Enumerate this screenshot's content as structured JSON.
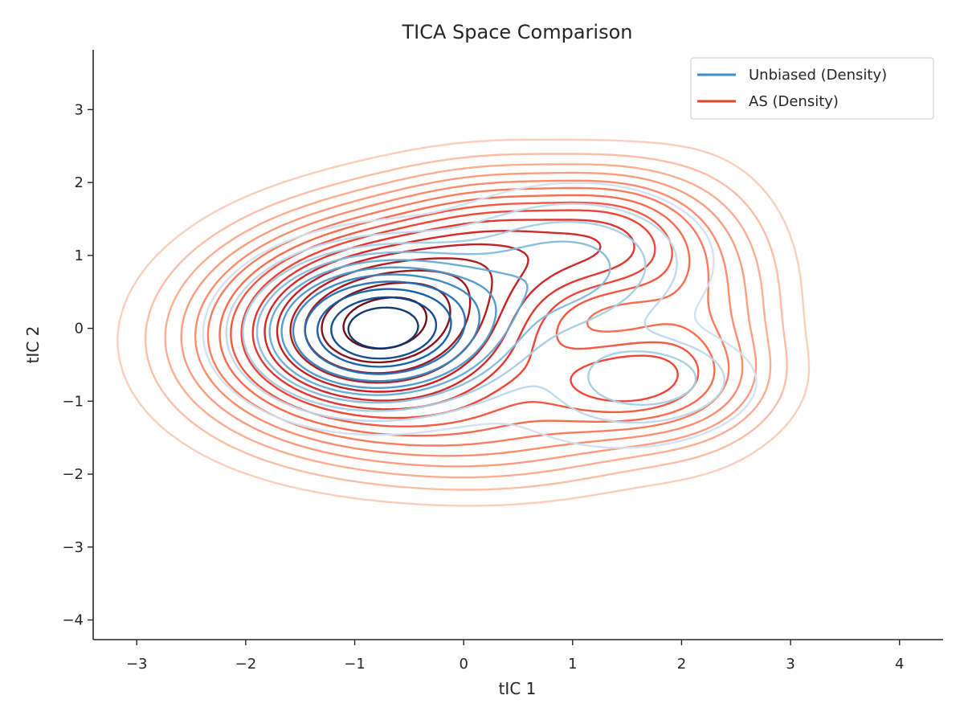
{
  "chart_data": {
    "type": "contour",
    "title": "TICA Space Comparison",
    "xlabel": "tIC 1",
    "ylabel": "tIC 2",
    "xlim": [
      -3.4,
      4.4
    ],
    "ylim": [
      -4.27,
      3.82
    ],
    "xticks": [
      -3,
      -2,
      -1,
      0,
      1,
      2,
      3,
      4
    ],
    "yticks": [
      -4,
      -3,
      -2,
      -1,
      0,
      1,
      2,
      3
    ],
    "xtick_labels": [
      "−3",
      "−2",
      "−1",
      "0",
      "1",
      "2",
      "3",
      "4"
    ],
    "ytick_labels": [
      "−4",
      "−3",
      "−2",
      "−1",
      "0",
      "1",
      "2",
      "3"
    ],
    "grid": false,
    "legend_position": "top-right",
    "series": [
      {
        "name": "Unbiased (Density)",
        "legend_color": "#3b8cc4",
        "colormap": "Blues",
        "components": [
          {
            "mx": -0.75,
            "my": 0.0,
            "sx": 0.62,
            "sy": 0.55,
            "rho": 0.05,
            "w": 1.0
          },
          {
            "mx": 0.9,
            "my": 0.8,
            "sx": 0.7,
            "sy": 0.6,
            "rho": 0.1,
            "w": 0.22
          },
          {
            "mx": 1.7,
            "my": -0.65,
            "sx": 0.5,
            "sy": 0.35,
            "rho": 0.0,
            "w": 0.14
          },
          {
            "mx": 1.4,
            "my": -1.1,
            "sx": 0.8,
            "sy": 0.5,
            "rho": 0.0,
            "w": 0.05
          }
        ],
        "levels": [
          0.03,
          0.07,
          0.12,
          0.18,
          0.25,
          0.33,
          0.42,
          0.52,
          0.63,
          0.75,
          0.88
        ]
      },
      {
        "name": "AS (Density)",
        "legend_color": "#e8422b",
        "colormap": "Reds",
        "components": [
          {
            "mx": -0.75,
            "my": 0.05,
            "sx": 0.8,
            "sy": 0.72,
            "rho": 0.1,
            "w": 1.0
          },
          {
            "mx": 0.5,
            "my": 1.1,
            "sx": 0.7,
            "sy": 0.55,
            "rho": 0.0,
            "w": 0.33
          },
          {
            "mx": 1.4,
            "my": 1.2,
            "sx": 0.45,
            "sy": 0.5,
            "rho": 0.0,
            "w": 0.2
          },
          {
            "mx": 1.5,
            "my": -0.7,
            "sx": 0.6,
            "sy": 0.45,
            "rho": 0.0,
            "w": 0.27
          },
          {
            "mx": 0.2,
            "my": -1.3,
            "sx": 0.9,
            "sy": 0.5,
            "rho": 0.0,
            "w": 0.12
          },
          {
            "mx": 2.1,
            "my": 0.3,
            "sx": 0.45,
            "sy": 0.9,
            "rho": 0.0,
            "w": 0.12
          }
        ],
        "levels": [
          0.01,
          0.025,
          0.045,
          0.07,
          0.1,
          0.135,
          0.175,
          0.22,
          0.27,
          0.33,
          0.4,
          0.48,
          0.57,
          0.67,
          0.78,
          0.9
        ]
      }
    ]
  }
}
